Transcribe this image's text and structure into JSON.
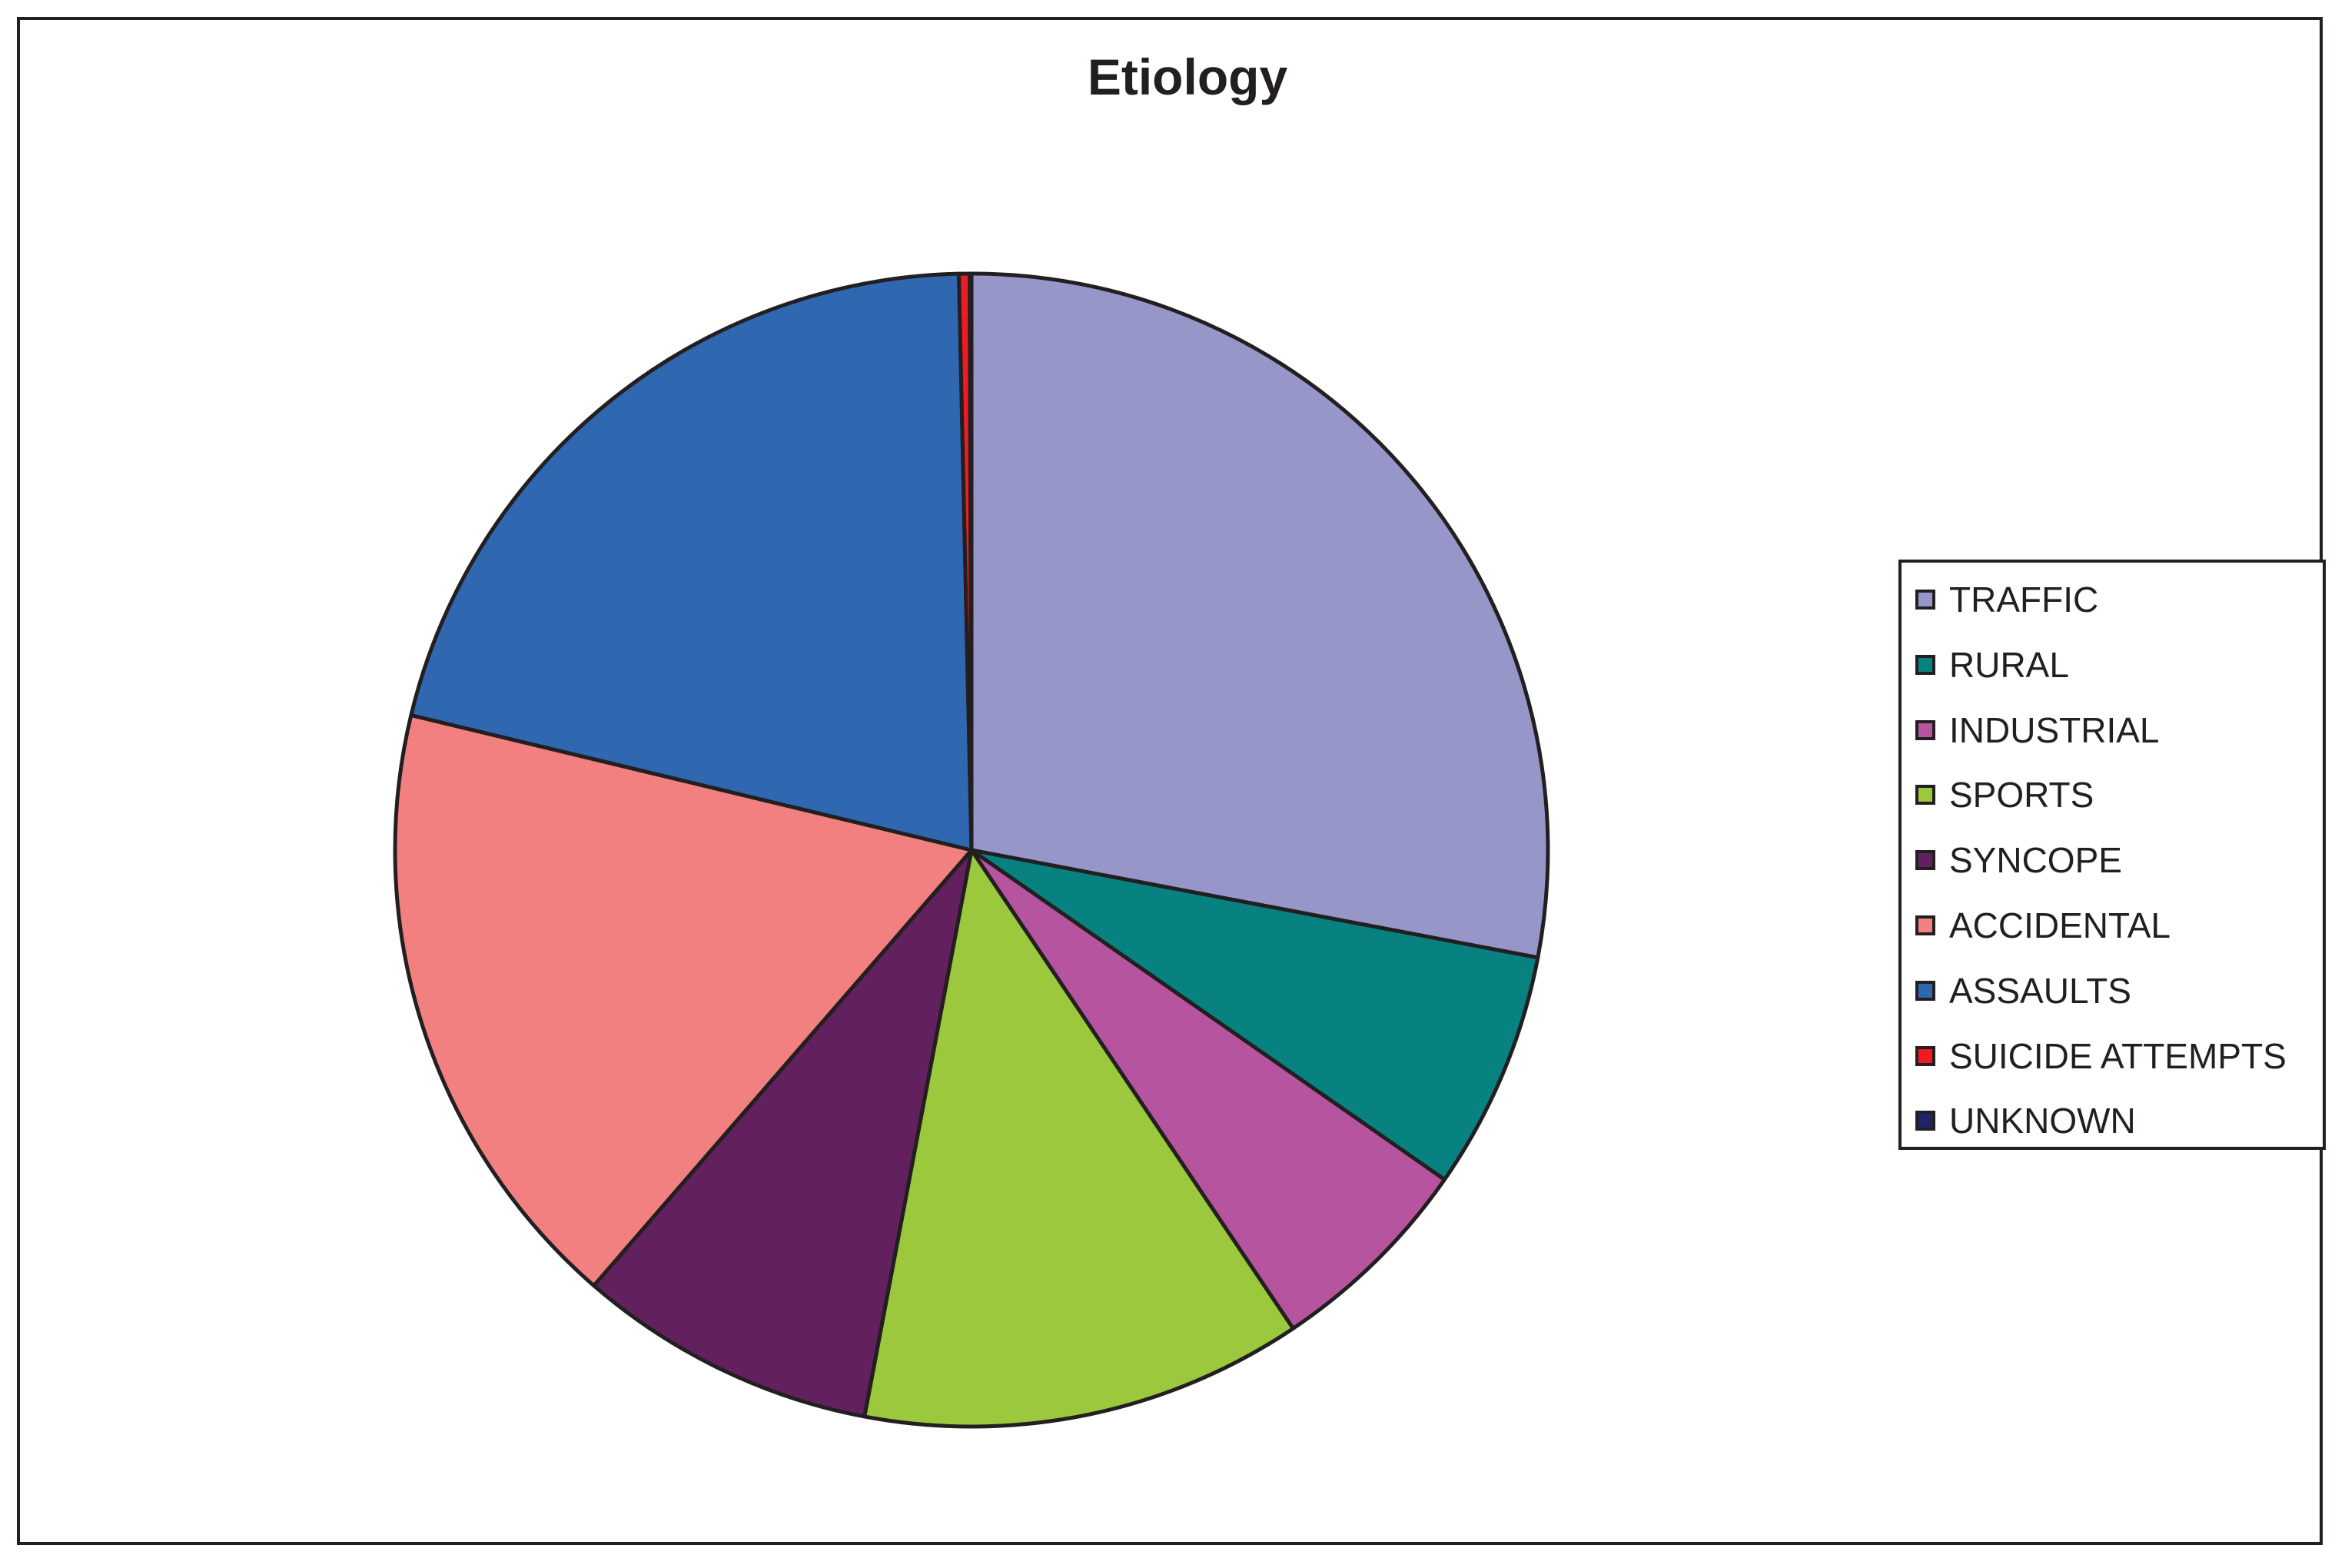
{
  "chart_data": {
    "type": "pie",
    "title": "Etiology",
    "legend_position": "right",
    "start_angle_deg": 0,
    "direction": "clockwise",
    "slices": [
      {
        "label": "TRAFFIC",
        "value": 28.0,
        "color": "#9696c9"
      },
      {
        "label": "RURAL",
        "value": 6.7,
        "color": "#078280"
      },
      {
        "label": "INDUSTRIAL",
        "value": 5.9,
        "color": "#b754a0"
      },
      {
        "label": "SPORTS",
        "value": 12.4,
        "color": "#9bc83c"
      },
      {
        "label": "SYNCOPE",
        "value": 8.4,
        "color": "#62205f"
      },
      {
        "label": "ACCIDENTAL",
        "value": 17.4,
        "color": "#f38080"
      },
      {
        "label": "ASSAULTS",
        "value": 20.9,
        "color": "#3067b1"
      },
      {
        "label": "SUICIDE ATTEMPTS",
        "value": 0.3,
        "color": "#ed1c24"
      },
      {
        "label": "UNKNOWN",
        "value": 0.05,
        "color": "#1f2466"
      }
    ]
  }
}
